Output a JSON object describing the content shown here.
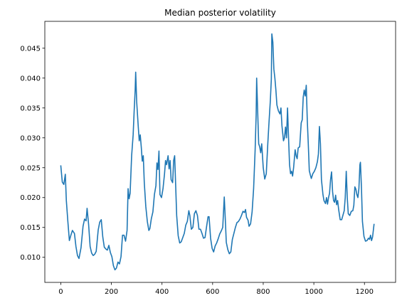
{
  "chart_data": {
    "type": "line",
    "title": "Median posterior volatility",
    "xlabel": "",
    "ylabel": "",
    "xlim": [
      -63,
      1323
    ],
    "ylim": [
      0.0058,
      0.0495
    ],
    "x_ticks": [
      0,
      200,
      400,
      600,
      800,
      1000,
      1200
    ],
    "x_tick_labels": [
      "0",
      "200",
      "400",
      "600",
      "800",
      "1000",
      "1200"
    ],
    "y_ticks": [
      0.01,
      0.015,
      0.02,
      0.025,
      0.03,
      0.035,
      0.04,
      0.045
    ],
    "y_tick_labels": [
      "0.010",
      "0.015",
      "0.020",
      "0.025",
      "0.030",
      "0.035",
      "0.040",
      "0.045"
    ],
    "grid": false,
    "line_color": "#1f77b4",
    "series": [
      {
        "points": [
          [
            0,
            0.0254
          ],
          [
            6,
            0.0226
          ],
          [
            12,
            0.0222
          ],
          [
            18,
            0.0239
          ],
          [
            22,
            0.0195
          ],
          [
            28,
            0.016
          ],
          [
            34,
            0.0128
          ],
          [
            40,
            0.0137
          ],
          [
            46,
            0.0145
          ],
          [
            54,
            0.014
          ],
          [
            60,
            0.0118
          ],
          [
            66,
            0.0103
          ],
          [
            72,
            0.0098
          ],
          [
            80,
            0.0116
          ],
          [
            88,
            0.0152
          ],
          [
            94,
            0.0164
          ],
          [
            100,
            0.0161
          ],
          [
            104,
            0.0182
          ],
          [
            110,
            0.0155
          ],
          [
            116,
            0.0118
          ],
          [
            122,
            0.0107
          ],
          [
            128,
            0.0103
          ],
          [
            134,
            0.0105
          ],
          [
            140,
            0.011
          ],
          [
            148,
            0.0146
          ],
          [
            154,
            0.0159
          ],
          [
            160,
            0.0163
          ],
          [
            166,
            0.0134
          ],
          [
            172,
            0.0117
          ],
          [
            178,
            0.0114
          ],
          [
            184,
            0.0112
          ],
          [
            190,
            0.012
          ],
          [
            196,
            0.0108
          ],
          [
            202,
            0.0101
          ],
          [
            208,
            0.0086
          ],
          [
            214,
            0.0079
          ],
          [
            220,
            0.0082
          ],
          [
            226,
            0.0092
          ],
          [
            232,
            0.0089
          ],
          [
            238,
            0.0101
          ],
          [
            244,
            0.0137
          ],
          [
            250,
            0.0137
          ],
          [
            256,
            0.0127
          ],
          [
            262,
            0.0145
          ],
          [
            266,
            0.0215
          ],
          [
            270,
            0.0198
          ],
          [
            274,
            0.0207
          ],
          [
            280,
            0.027
          ],
          [
            286,
            0.0305
          ],
          [
            290,
            0.0345
          ],
          [
            294,
            0.038
          ],
          [
            296,
            0.041
          ],
          [
            300,
            0.036
          ],
          [
            306,
            0.032
          ],
          [
            310,
            0.0295
          ],
          [
            314,
            0.0305
          ],
          [
            318,
            0.0285
          ],
          [
            322,
            0.0261
          ],
          [
            326,
            0.027
          ],
          [
            330,
            0.0225
          ],
          [
            336,
            0.0185
          ],
          [
            342,
            0.016
          ],
          [
            348,
            0.0145
          ],
          [
            352,
            0.0148
          ],
          [
            358,
            0.0165
          ],
          [
            364,
            0.0176
          ],
          [
            370,
            0.0205
          ],
          [
            376,
            0.022
          ],
          [
            380,
            0.0258
          ],
          [
            384,
            0.0247
          ],
          [
            388,
            0.0278
          ],
          [
            392,
            0.0205
          ],
          [
            398,
            0.02
          ],
          [
            404,
            0.0215
          ],
          [
            410,
            0.024
          ],
          [
            414,
            0.0262
          ],
          [
            418,
            0.0255
          ],
          [
            424,
            0.027
          ],
          [
            428,
            0.0248
          ],
          [
            432,
            0.0262
          ],
          [
            436,
            0.023
          ],
          [
            442,
            0.0225
          ],
          [
            446,
            0.0262
          ],
          [
            450,
            0.027
          ],
          [
            454,
            0.022
          ],
          [
            458,
            0.017
          ],
          [
            464,
            0.0136
          ],
          [
            470,
            0.0124
          ],
          [
            476,
            0.0126
          ],
          [
            482,
            0.0133
          ],
          [
            488,
            0.014
          ],
          [
            494,
            0.0154
          ],
          [
            500,
            0.016
          ],
          [
            506,
            0.0178
          ],
          [
            510,
            0.017
          ],
          [
            516,
            0.0147
          ],
          [
            522,
            0.015
          ],
          [
            528,
            0.0173
          ],
          [
            534,
            0.0178
          ],
          [
            540,
            0.017
          ],
          [
            546,
            0.0147
          ],
          [
            552,
            0.0147
          ],
          [
            558,
            0.014
          ],
          [
            564,
            0.0132
          ],
          [
            570,
            0.0133
          ],
          [
            576,
            0.0151
          ],
          [
            582,
            0.0168
          ],
          [
            586,
            0.0168
          ],
          [
            592,
            0.0132
          ],
          [
            598,
            0.0115
          ],
          [
            604,
            0.0109
          ],
          [
            610,
            0.0119
          ],
          [
            616,
            0.0124
          ],
          [
            622,
            0.0131
          ],
          [
            628,
            0.0139
          ],
          [
            634,
            0.0144
          ],
          [
            640,
            0.015
          ],
          [
            646,
            0.0201
          ],
          [
            650,
            0.0165
          ],
          [
            654,
            0.0125
          ],
          [
            660,
            0.0113
          ],
          [
            666,
            0.0106
          ],
          [
            672,
            0.0109
          ],
          [
            678,
            0.013
          ],
          [
            684,
            0.014
          ],
          [
            690,
            0.015
          ],
          [
            696,
            0.0158
          ],
          [
            702,
            0.016
          ],
          [
            708,
            0.0164
          ],
          [
            714,
            0.017
          ],
          [
            720,
            0.0177
          ],
          [
            726,
            0.0175
          ],
          [
            730,
            0.018
          ],
          [
            734,
            0.0167
          ],
          [
            740,
            0.0162
          ],
          [
            744,
            0.0152
          ],
          [
            750,
            0.0156
          ],
          [
            756,
            0.0176
          ],
          [
            762,
            0.0215
          ],
          [
            768,
            0.028
          ],
          [
            772,
            0.0338
          ],
          [
            774,
            0.04
          ],
          [
            778,
            0.0345
          ],
          [
            782,
            0.029
          ],
          [
            786,
            0.0285
          ],
          [
            790,
            0.0275
          ],
          [
            794,
            0.029
          ],
          [
            800,
            0.025
          ],
          [
            806,
            0.0231
          ],
          [
            812,
            0.024
          ],
          [
            818,
            0.029
          ],
          [
            822,
            0.032
          ],
          [
            828,
            0.0362
          ],
          [
            832,
            0.0398
          ],
          [
            834,
            0.0474
          ],
          [
            838,
            0.046
          ],
          [
            842,
            0.0415
          ],
          [
            846,
            0.04
          ],
          [
            850,
            0.038
          ],
          [
            854,
            0.0355
          ],
          [
            860,
            0.0345
          ],
          [
            866,
            0.034
          ],
          [
            870,
            0.035
          ],
          [
            874,
            0.032
          ],
          [
            880,
            0.0295
          ],
          [
            884,
            0.03
          ],
          [
            888,
            0.0318
          ],
          [
            892,
            0.03
          ],
          [
            896,
            0.035
          ],
          [
            900,
            0.03
          ],
          [
            904,
            0.0255
          ],
          [
            908,
            0.024
          ],
          [
            912,
            0.0244
          ],
          [
            916,
            0.0236
          ],
          [
            920,
            0.025
          ],
          [
            926,
            0.028
          ],
          [
            930,
            0.027
          ],
          [
            934,
            0.0265
          ],
          [
            938,
            0.0283
          ],
          [
            944,
            0.0285
          ],
          [
            950,
            0.0325
          ],
          [
            954,
            0.033
          ],
          [
            958,
            0.0368
          ],
          [
            962,
            0.038
          ],
          [
            966,
            0.037
          ],
          [
            970,
            0.0388
          ],
          [
            974,
            0.033
          ],
          [
            978,
            0.029
          ],
          [
            982,
            0.0245
          ],
          [
            986,
            0.0238
          ],
          [
            990,
            0.0232
          ],
          [
            996,
            0.024
          ],
          [
            1002,
            0.0244
          ],
          [
            1008,
            0.025
          ],
          [
            1014,
            0.026
          ],
          [
            1018,
            0.0273
          ],
          [
            1022,
            0.0319
          ],
          [
            1026,
            0.029
          ],
          [
            1030,
            0.023
          ],
          [
            1036,
            0.0205
          ],
          [
            1040,
            0.0195
          ],
          [
            1046,
            0.019
          ],
          [
            1050,
            0.02
          ],
          [
            1054,
            0.0189
          ],
          [
            1058,
            0.02
          ],
          [
            1062,
            0.0207
          ],
          [
            1066,
            0.023
          ],
          [
            1070,
            0.0243
          ],
          [
            1074,
            0.021
          ],
          [
            1078,
            0.0195
          ],
          [
            1082,
            0.0192
          ],
          [
            1086,
            0.0204
          ],
          [
            1090,
            0.0188
          ],
          [
            1094,
            0.0195
          ],
          [
            1098,
            0.018
          ],
          [
            1104,
            0.0163
          ],
          [
            1110,
            0.0163
          ],
          [
            1116,
            0.0172
          ],
          [
            1120,
            0.0178
          ],
          [
            1124,
            0.02
          ],
          [
            1128,
            0.0244
          ],
          [
            1132,
            0.02
          ],
          [
            1136,
            0.0173
          ],
          [
            1142,
            0.017
          ],
          [
            1148,
            0.0177
          ],
          [
            1154,
            0.0178
          ],
          [
            1158,
            0.0187
          ],
          [
            1162,
            0.0218
          ],
          [
            1166,
            0.0214
          ],
          [
            1170,
            0.0205
          ],
          [
            1174,
            0.02
          ],
          [
            1178,
            0.0215
          ],
          [
            1182,
            0.0255
          ],
          [
            1184,
            0.0259
          ],
          [
            1188,
            0.0218
          ],
          [
            1192,
            0.016
          ],
          [
            1198,
            0.0135
          ],
          [
            1204,
            0.0127
          ],
          [
            1210,
            0.0128
          ],
          [
            1216,
            0.0132
          ],
          [
            1220,
            0.013
          ],
          [
            1224,
            0.0137
          ],
          [
            1228,
            0.0128
          ],
          [
            1232,
            0.0134
          ],
          [
            1238,
            0.0156
          ]
        ]
      }
    ]
  }
}
